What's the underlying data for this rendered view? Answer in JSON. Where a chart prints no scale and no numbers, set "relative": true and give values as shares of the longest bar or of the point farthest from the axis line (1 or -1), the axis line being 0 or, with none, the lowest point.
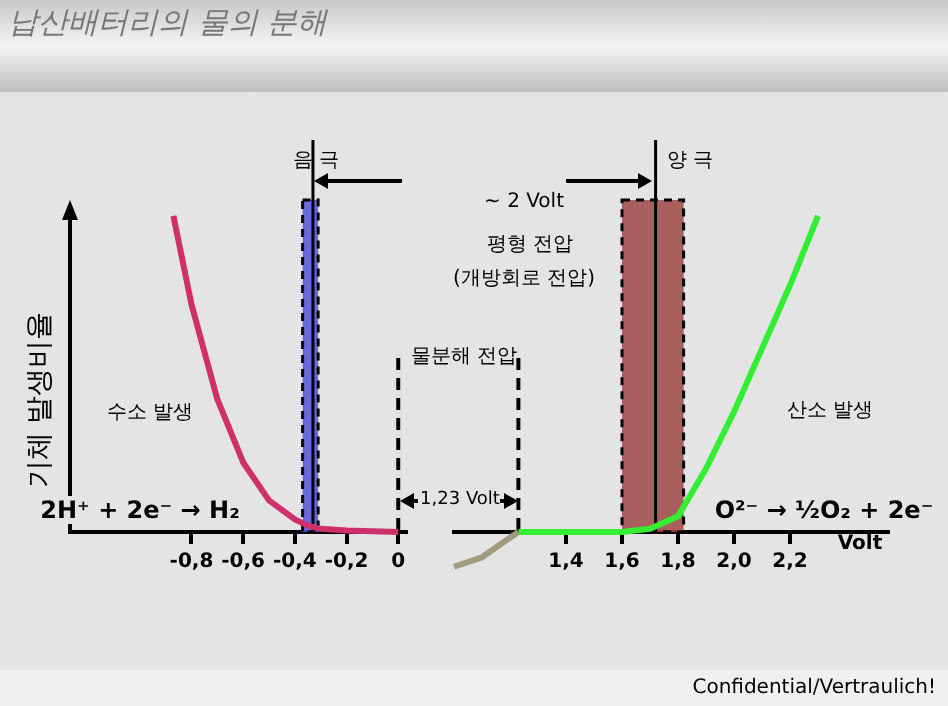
{
  "chart_data": [
    {
      "type": "line",
      "title": "납산배터리의 물의 분해",
      "ylabel": "기체 발생비율",
      "relative": true,
      "xlim": [
        -1.27,
        0.03
      ],
      "xticks": [
        {
          "value": -0.8,
          "label": "-0,8"
        },
        {
          "value": -0.6,
          "label": "-0,6"
        },
        {
          "value": -0.4,
          "label": "-0,4"
        },
        {
          "value": -0.2,
          "label": "-0,2"
        },
        0
      ],
      "series": [
        {
          "color": "#d0306a",
          "x": [
            -0.87,
            -0.8,
            -0.7,
            -0.6,
            -0.5,
            -0.4,
            -0.35,
            -0.3,
            -0.2,
            -0.1,
            0
          ],
          "values": [
            1,
            0.72,
            0.42,
            0.22,
            0.1,
            0.04,
            0.02,
            0.01,
            0.005,
            0.002,
            0
          ]
        }
      ],
      "bands": [
        {
          "axis": "x",
          "from": -0.37,
          "to": -0.31,
          "label": null,
          "color": "#5555dd"
        }
      ],
      "ref_lines": [
        {
          "axis": "x",
          "value": -0.33,
          "label": null,
          "line_style": "solid"
        },
        {
          "axis": "x",
          "value": 0,
          "label": null,
          "line_style": "dashed"
        }
      ],
      "annotations": [
        "음 극",
        "~ 2 Volt",
        "평형 전압",
        "(개방회로 전압)",
        "물분해 전압",
        "1,23 Volt",
        "수소 발생",
        "2H⁺ + 2e⁻ → H₂"
      ]
    },
    {
      "type": "line",
      "relative": true,
      "xlabel": "Volt",
      "xlim": [
        1.0,
        2.55
      ],
      "xticks": [
        {
          "value": 1.4,
          "label": "1,4"
        },
        {
          "value": 1.6,
          "label": "1,6"
        },
        {
          "value": 1.8,
          "label": "1,8"
        },
        {
          "value": 2.0,
          "label": "2,0"
        },
        {
          "value": 2.2,
          "label": "2,2"
        }
      ],
      "series": [
        {
          "color": "#a09a80",
          "x": [
            1.0,
            1.1,
            1.18,
            1.23
          ],
          "values": [
            -0.11,
            -0.08,
            -0.03,
            0
          ]
        },
        {
          "color": "#33ee33",
          "x": [
            1.23,
            1.5,
            1.6,
            1.7,
            1.8,
            1.9,
            2.0,
            2.1,
            2.2,
            2.3
          ],
          "values": [
            0,
            0,
            0,
            0.01,
            0.05,
            0.2,
            0.38,
            0.58,
            0.78,
            1
          ]
        }
      ],
      "bands": [
        {
          "axis": "x",
          "from": 1.6,
          "to": 1.82,
          "label": null,
          "color": "#a04848"
        }
      ],
      "ref_lines": [
        {
          "axis": "x",
          "value": 1.72,
          "label": null,
          "line_style": "solid"
        },
        {
          "axis": "x",
          "value": 1.23,
          "label": null,
          "line_style": "dashed"
        }
      ],
      "annotations": [
        "양 극",
        "산소 발생",
        "O²⁻ → ½O₂ + 2e⁻",
        "Confidential/Vertraulich!"
      ]
    }
  ]
}
